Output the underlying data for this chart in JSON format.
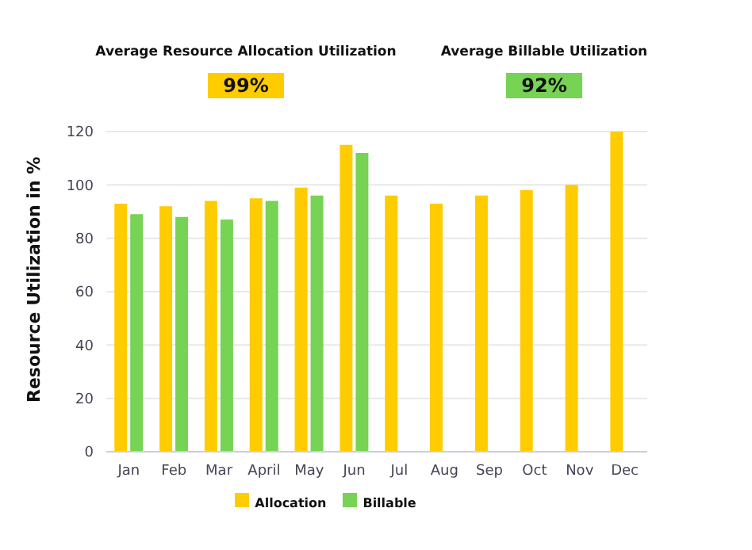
{
  "chart_data": {
    "type": "bar",
    "ylabel": "Resource Utilization in  %",
    "annotations": [
      "Average Resource Allocation Utilization",
      "99%",
      "Average Billable Utilization",
      "92%"
    ],
    "categories": [
      "Jan",
      "Feb",
      "Mar",
      "April",
      "May",
      "Jun",
      "Jul",
      "Aug",
      "Sep",
      "Oct",
      "Nov",
      "Dec"
    ],
    "series": [
      {
        "name": "Allocation",
        "color": "#ffcc00",
        "values": [
          93,
          92,
          94,
          95,
          99,
          115,
          96,
          93,
          96,
          98,
          100,
          120
        ]
      },
      {
        "name": "Billable",
        "color": "#77d353",
        "values": [
          89,
          88,
          87,
          94,
          96,
          112,
          null,
          null,
          null,
          null,
          null,
          null
        ]
      }
    ],
    "ylim": [
      0,
      120
    ],
    "yticks": [
      0,
      20,
      40,
      60,
      80,
      100,
      120
    ],
    "grid": "y",
    "legend": "bottom"
  }
}
